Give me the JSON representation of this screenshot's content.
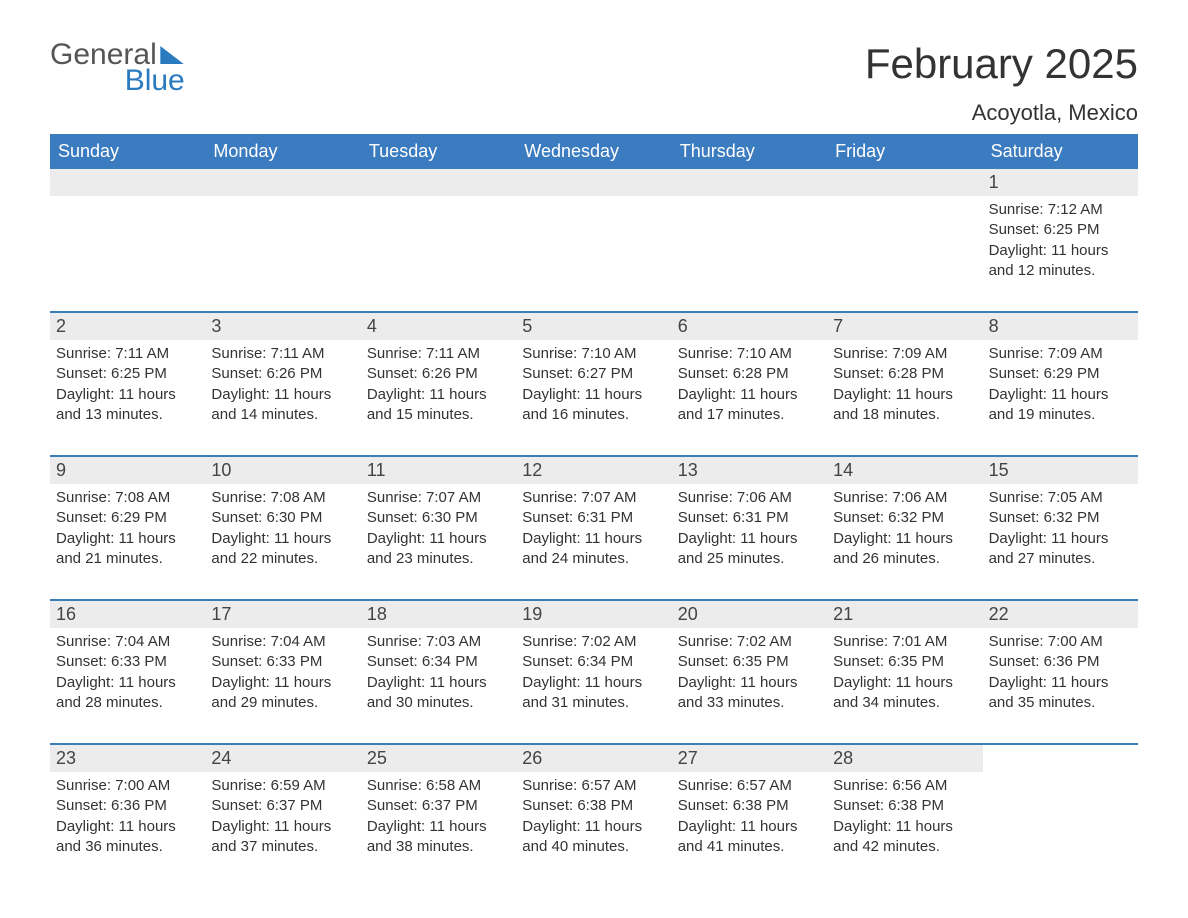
{
  "logo": {
    "general": "General",
    "blue": "Blue"
  },
  "title": "February 2025",
  "location": "Acoyotla, Mexico",
  "colors": {
    "header_bg": "#3b7bbf",
    "row_top_border": "#3b7bbf",
    "daynum_bg": "#ececec",
    "text": "#333333",
    "logo_blue": "#2a7ac0"
  },
  "weekdays": [
    "Sunday",
    "Monday",
    "Tuesday",
    "Wednesday",
    "Thursday",
    "Friday",
    "Saturday"
  ],
  "weeks": [
    [
      {
        "day": "",
        "sunrise": "",
        "sunset": "",
        "daylight": ""
      },
      {
        "day": "",
        "sunrise": "",
        "sunset": "",
        "daylight": ""
      },
      {
        "day": "",
        "sunrise": "",
        "sunset": "",
        "daylight": ""
      },
      {
        "day": "",
        "sunrise": "",
        "sunset": "",
        "daylight": ""
      },
      {
        "day": "",
        "sunrise": "",
        "sunset": "",
        "daylight": ""
      },
      {
        "day": "",
        "sunrise": "",
        "sunset": "",
        "daylight": ""
      },
      {
        "day": "1",
        "sunrise": "Sunrise: 7:12 AM",
        "sunset": "Sunset: 6:25 PM",
        "daylight": "Daylight: 11 hours and 12 minutes."
      }
    ],
    [
      {
        "day": "2",
        "sunrise": "Sunrise: 7:11 AM",
        "sunset": "Sunset: 6:25 PM",
        "daylight": "Daylight: 11 hours and 13 minutes."
      },
      {
        "day": "3",
        "sunrise": "Sunrise: 7:11 AM",
        "sunset": "Sunset: 6:26 PM",
        "daylight": "Daylight: 11 hours and 14 minutes."
      },
      {
        "day": "4",
        "sunrise": "Sunrise: 7:11 AM",
        "sunset": "Sunset: 6:26 PM",
        "daylight": "Daylight: 11 hours and 15 minutes."
      },
      {
        "day": "5",
        "sunrise": "Sunrise: 7:10 AM",
        "sunset": "Sunset: 6:27 PM",
        "daylight": "Daylight: 11 hours and 16 minutes."
      },
      {
        "day": "6",
        "sunrise": "Sunrise: 7:10 AM",
        "sunset": "Sunset: 6:28 PM",
        "daylight": "Daylight: 11 hours and 17 minutes."
      },
      {
        "day": "7",
        "sunrise": "Sunrise: 7:09 AM",
        "sunset": "Sunset: 6:28 PM",
        "daylight": "Daylight: 11 hours and 18 minutes."
      },
      {
        "day": "8",
        "sunrise": "Sunrise: 7:09 AM",
        "sunset": "Sunset: 6:29 PM",
        "daylight": "Daylight: 11 hours and 19 minutes."
      }
    ],
    [
      {
        "day": "9",
        "sunrise": "Sunrise: 7:08 AM",
        "sunset": "Sunset: 6:29 PM",
        "daylight": "Daylight: 11 hours and 21 minutes."
      },
      {
        "day": "10",
        "sunrise": "Sunrise: 7:08 AM",
        "sunset": "Sunset: 6:30 PM",
        "daylight": "Daylight: 11 hours and 22 minutes."
      },
      {
        "day": "11",
        "sunrise": "Sunrise: 7:07 AM",
        "sunset": "Sunset: 6:30 PM",
        "daylight": "Daylight: 11 hours and 23 minutes."
      },
      {
        "day": "12",
        "sunrise": "Sunrise: 7:07 AM",
        "sunset": "Sunset: 6:31 PM",
        "daylight": "Daylight: 11 hours and 24 minutes."
      },
      {
        "day": "13",
        "sunrise": "Sunrise: 7:06 AM",
        "sunset": "Sunset: 6:31 PM",
        "daylight": "Daylight: 11 hours and 25 minutes."
      },
      {
        "day": "14",
        "sunrise": "Sunrise: 7:06 AM",
        "sunset": "Sunset: 6:32 PM",
        "daylight": "Daylight: 11 hours and 26 minutes."
      },
      {
        "day": "15",
        "sunrise": "Sunrise: 7:05 AM",
        "sunset": "Sunset: 6:32 PM",
        "daylight": "Daylight: 11 hours and 27 minutes."
      }
    ],
    [
      {
        "day": "16",
        "sunrise": "Sunrise: 7:04 AM",
        "sunset": "Sunset: 6:33 PM",
        "daylight": "Daylight: 11 hours and 28 minutes."
      },
      {
        "day": "17",
        "sunrise": "Sunrise: 7:04 AM",
        "sunset": "Sunset: 6:33 PM",
        "daylight": "Daylight: 11 hours and 29 minutes."
      },
      {
        "day": "18",
        "sunrise": "Sunrise: 7:03 AM",
        "sunset": "Sunset: 6:34 PM",
        "daylight": "Daylight: 11 hours and 30 minutes."
      },
      {
        "day": "19",
        "sunrise": "Sunrise: 7:02 AM",
        "sunset": "Sunset: 6:34 PM",
        "daylight": "Daylight: 11 hours and 31 minutes."
      },
      {
        "day": "20",
        "sunrise": "Sunrise: 7:02 AM",
        "sunset": "Sunset: 6:35 PM",
        "daylight": "Daylight: 11 hours and 33 minutes."
      },
      {
        "day": "21",
        "sunrise": "Sunrise: 7:01 AM",
        "sunset": "Sunset: 6:35 PM",
        "daylight": "Daylight: 11 hours and 34 minutes."
      },
      {
        "day": "22",
        "sunrise": "Sunrise: 7:00 AM",
        "sunset": "Sunset: 6:36 PM",
        "daylight": "Daylight: 11 hours and 35 minutes."
      }
    ],
    [
      {
        "day": "23",
        "sunrise": "Sunrise: 7:00 AM",
        "sunset": "Sunset: 6:36 PM",
        "daylight": "Daylight: 11 hours and 36 minutes."
      },
      {
        "day": "24",
        "sunrise": "Sunrise: 6:59 AM",
        "sunset": "Sunset: 6:37 PM",
        "daylight": "Daylight: 11 hours and 37 minutes."
      },
      {
        "day": "25",
        "sunrise": "Sunrise: 6:58 AM",
        "sunset": "Sunset: 6:37 PM",
        "daylight": "Daylight: 11 hours and 38 minutes."
      },
      {
        "day": "26",
        "sunrise": "Sunrise: 6:57 AM",
        "sunset": "Sunset: 6:38 PM",
        "daylight": "Daylight: 11 hours and 40 minutes."
      },
      {
        "day": "27",
        "sunrise": "Sunrise: 6:57 AM",
        "sunset": "Sunset: 6:38 PM",
        "daylight": "Daylight: 11 hours and 41 minutes."
      },
      {
        "day": "28",
        "sunrise": "Sunrise: 6:56 AM",
        "sunset": "Sunset: 6:38 PM",
        "daylight": "Daylight: 11 hours and 42 minutes."
      },
      {
        "day": "",
        "sunrise": "",
        "sunset": "",
        "daylight": ""
      }
    ]
  ]
}
